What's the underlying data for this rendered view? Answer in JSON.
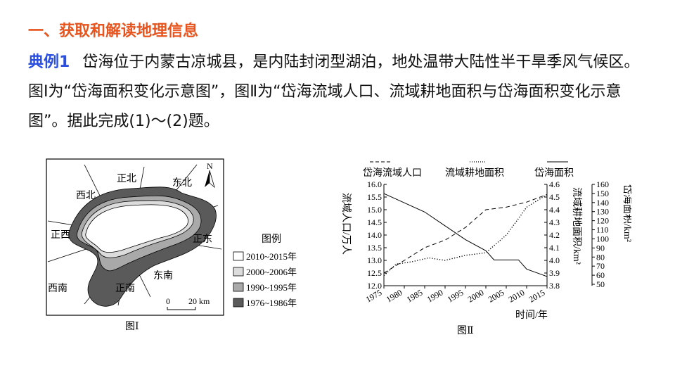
{
  "heading": "一、获取和解读地理信息",
  "example": {
    "label": "典例1",
    "text": "岱海位于内蒙古凉城县，是内陆封闭型湖泊，地处温带大陆性半干旱季风气候区。图Ⅰ为“岱海面积变化示意图”，图Ⅱ为“岱海流域人口、流域耕地面积与岱海面积变化示意图”。据此完成(1)～(2)题。"
  },
  "figure1": {
    "caption": "图Ⅰ",
    "directions": {
      "n": "正北",
      "ne": "东北",
      "nw": "西北",
      "w": "正西",
      "e": "正东",
      "se": "东南",
      "sw": "西南",
      "s": "正南"
    },
    "north_arrow": "N",
    "scale_zero": "0",
    "scale_label": "20 km",
    "legend_title": "图例",
    "legend": [
      {
        "label": "2010~2015年",
        "color": "#ffffff"
      },
      {
        "label": "2000~2006年",
        "color": "#dcdcdc"
      },
      {
        "label": "1990~1995年",
        "color": "#a9a9a9"
      },
      {
        "label": "1976~1986年",
        "color": "#5a5a5a"
      }
    ]
  },
  "figure2": {
    "caption": "图Ⅱ",
    "legend": [
      {
        "label": "岱海流域人口",
        "style": "dashed"
      },
      {
        "label": "流域耕地面积",
        "style": "dotted"
      },
      {
        "label": "岱海面积",
        "style": "solid"
      }
    ]
  },
  "chart_data": {
    "type": "line",
    "xlabel": "时间/年",
    "x_ticks": [
      "1975",
      "1980",
      "1985",
      "1990",
      "1995",
      "2000",
      "2005",
      "2010",
      "2015"
    ],
    "xlim": [
      1975,
      2015
    ],
    "y_axes": [
      {
        "label": "流域人口/万人",
        "ticks": [
          "16.0",
          "15.5",
          "15.0",
          "14.5",
          "14.0",
          "13.5",
          "13.0",
          "12.5",
          "12.0"
        ],
        "lim": [
          12.0,
          16.0
        ]
      },
      {
        "label": "流域耕地面积/km²",
        "ticks": [
          "4.6",
          "4.5",
          "4.4",
          "4.3",
          "4.2",
          "4.1",
          "4.0",
          "3.9",
          "3.8"
        ],
        "lim": [
          3.8,
          4.6
        ]
      },
      {
        "label": "岱海面积/km²",
        "ticks": [
          "160",
          "150",
          "140",
          "130",
          "120",
          "110",
          "100",
          "90",
          "80",
          "70",
          "60",
          "50"
        ],
        "lim": [
          50,
          160
        ]
      }
    ],
    "series": [
      {
        "name": "岱海流域人口",
        "style": "dashed",
        "axis": 0,
        "x": [
          1975,
          1980,
          1985,
          1990,
          1995,
          2000,
          2005,
          2010,
          2015
        ],
        "values": [
          12.5,
          13.0,
          13.5,
          13.8,
          14.3,
          15.0,
          15.1,
          15.3,
          15.6
        ]
      },
      {
        "name": "流域耕地面积",
        "style": "dotted",
        "axis": 1,
        "x": [
          1975,
          1978,
          1982,
          1986,
          1990,
          1995,
          2000,
          2005,
          2008,
          2010,
          2015
        ],
        "values": [
          3.88,
          3.97,
          3.99,
          4.02,
          4.0,
          4.04,
          4.06,
          4.2,
          4.33,
          4.42,
          4.52
        ]
      },
      {
        "name": "岱海面积",
        "style": "solid",
        "axis": 2,
        "x": [
          1975,
          1980,
          1985,
          1990,
          1995,
          2000,
          2002,
          2005,
          2008,
          2010,
          2015
        ],
        "values": [
          150,
          140,
          130,
          115,
          100,
          88,
          78,
          78,
          78,
          68,
          60
        ]
      }
    ]
  }
}
